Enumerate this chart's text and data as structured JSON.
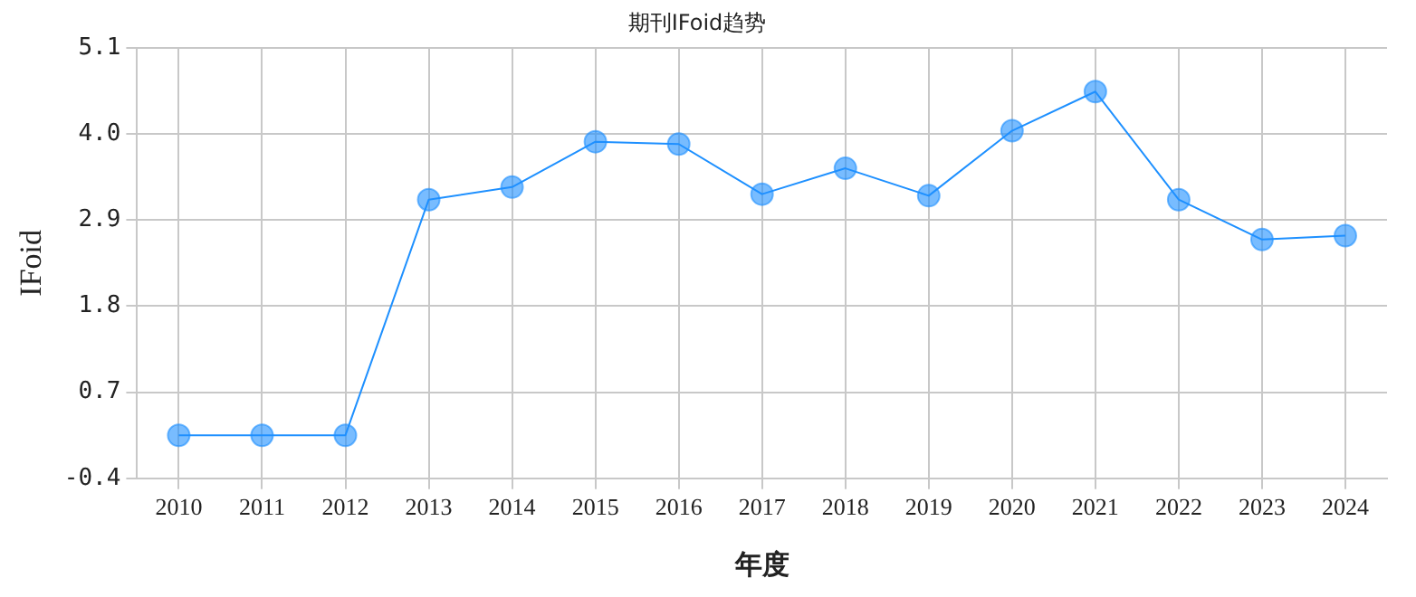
{
  "chart_data": {
    "type": "line",
    "title": "期刊IFoid趋势",
    "xlabel": "年度",
    "ylabel": "IFoid",
    "categories": [
      "2010",
      "2011",
      "2012",
      "2013",
      "2014",
      "2015",
      "2016",
      "2017",
      "2018",
      "2019",
      "2020",
      "2021",
      "2022",
      "2023",
      "2024"
    ],
    "series": [
      {
        "color": "#1e90ff",
        "values": [
          0.15,
          0.15,
          0.15,
          3.16,
          3.32,
          3.9,
          3.87,
          3.23,
          3.56,
          3.21,
          4.04,
          4.54,
          3.16,
          2.65,
          2.7
        ]
      }
    ],
    "ylim": [
      -0.4,
      5.1
    ],
    "yticks": [
      {
        "value": -0.4,
        "label": "-0.4"
      },
      {
        "value": 0.7,
        "label": "0.7"
      },
      {
        "value": 1.8,
        "label": "1.8"
      },
      {
        "value": 2.9,
        "label": "2.9"
      },
      {
        "value": 4.0,
        "label": "4.0"
      },
      {
        "value": 5.1,
        "label": "5.1"
      }
    ],
    "grid": true,
    "legend": false,
    "marker": "circle",
    "line_style": "solid"
  }
}
